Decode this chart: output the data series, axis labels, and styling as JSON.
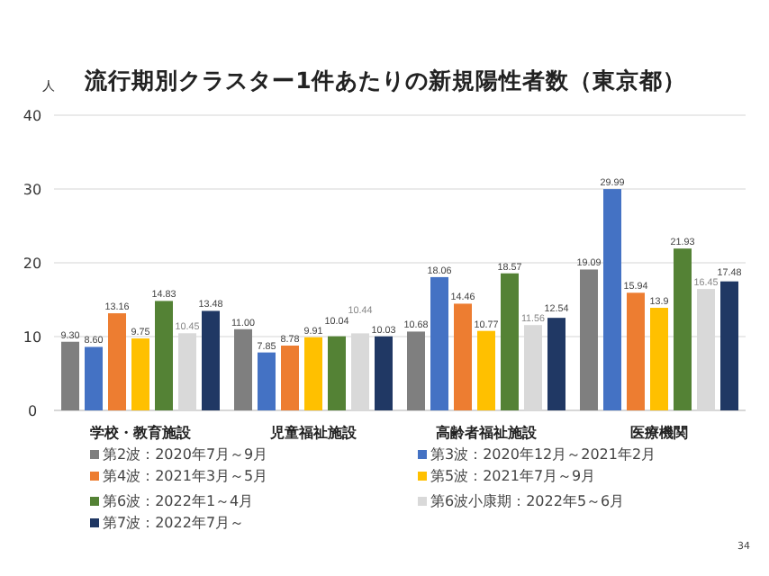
{
  "chart_data": {
    "type": "bar",
    "title": "流行期別クラスター1件あたりの新規陽性者数（東京都）",
    "ylabel": "人",
    "categories": [
      "学校・教育施設",
      "児童福祉施設",
      "高齢者福祉施設",
      "医療機関"
    ],
    "series": [
      {
        "name": "第2波：2020年7月～9月",
        "color": "#7f7f7f",
        "values": [
          9.3,
          11.0,
          10.68,
          19.09
        ],
        "value_labels": [
          "9.30",
          "11.00",
          "10.68",
          "19.09"
        ]
      },
      {
        "name": "第3波：2020年12月～2021年2月",
        "color": "#4472c4",
        "values": [
          8.6,
          7.85,
          18.06,
          29.99
        ],
        "value_labels": [
          "8.60",
          "7.85",
          "18.06",
          "29.99"
        ]
      },
      {
        "name": "第4波：2021年3月～5月",
        "color": "#ed7d31",
        "values": [
          13.16,
          8.78,
          14.46,
          15.94
        ],
        "value_labels": [
          "13.16",
          "8.78",
          "14.46",
          "15.94"
        ]
      },
      {
        "name": "第5波：2021年7月～9月",
        "color": "#ffc000",
        "values": [
          9.75,
          9.91,
          10.77,
          13.9
        ],
        "value_labels": [
          "9.75",
          "9.91",
          "10.77",
          "13.9"
        ]
      },
      {
        "name": "第6波：2022年1～4月",
        "color": "#548235",
        "values": [
          14.83,
          10.04,
          18.57,
          21.93
        ],
        "value_labels": [
          "14.83",
          "10.04",
          "18.57",
          "21.93"
        ]
      },
      {
        "name": "第6波小康期：2022年5～6月",
        "color": "#d9d9d9",
        "values": [
          10.45,
          10.44,
          11.56,
          16.45
        ],
        "value_labels": [
          "10.45",
          "10.44",
          "11.56",
          "16.45"
        ]
      },
      {
        "name": "第7波：2022年7月～",
        "color": "#203864",
        "values": [
          13.48,
          10.03,
          12.54,
          17.48
        ],
        "value_labels": [
          "13.48",
          "10.03",
          "12.54",
          "17.48"
        ]
      }
    ],
    "ylim": [
      0,
      40
    ],
    "yticks": [
      0,
      10,
      20,
      30,
      40
    ],
    "grid": "y",
    "legend": "bottom",
    "annotations": [
      "34"
    ]
  }
}
